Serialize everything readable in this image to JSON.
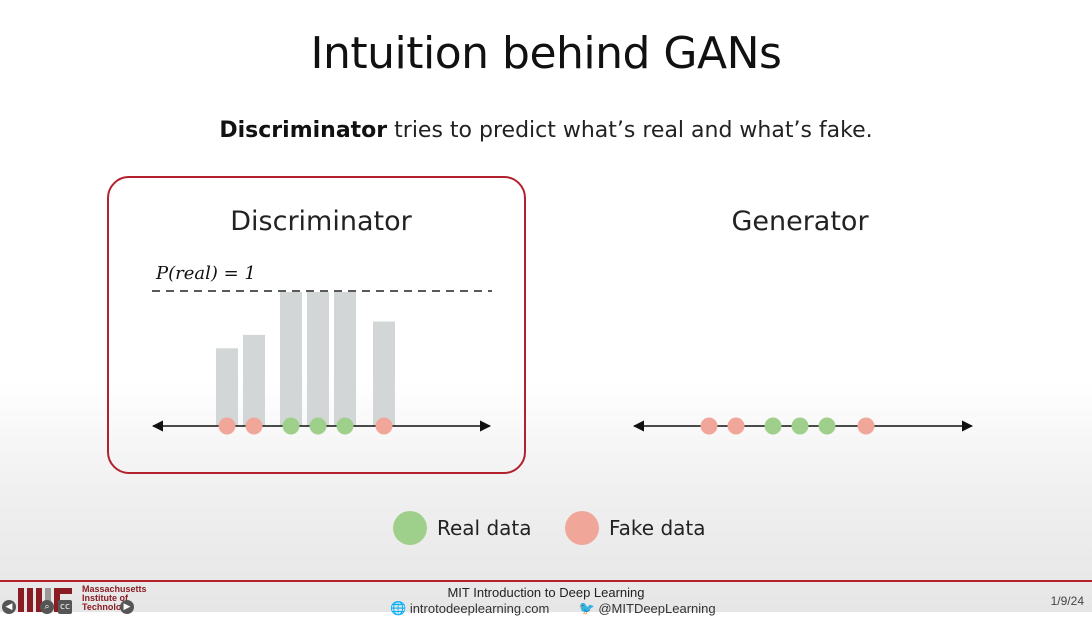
{
  "slide": {
    "title": "Intuition behind GANs",
    "subtitle_bold": "Discriminator",
    "subtitle_rest": " tries to predict what’s real and what’s fake."
  },
  "discriminator_panel": {
    "label": "Discriminator",
    "threshold_label": "P(real) = 1",
    "accent_color": "#b3202e"
  },
  "generator_panel": {
    "label": "Generator"
  },
  "chart_data": {
    "type": "bar",
    "title": "",
    "xlabel": "",
    "ylabel": "",
    "ylim": [
      0,
      1
    ],
    "threshold": 1,
    "points": [
      {
        "kind": "fake",
        "p_real": 0.58
      },
      {
        "kind": "fake",
        "p_real": 0.68
      },
      {
        "kind": "real",
        "p_real": 1.0
      },
      {
        "kind": "real",
        "p_real": 1.0
      },
      {
        "kind": "real",
        "p_real": 1.0
      },
      {
        "kind": "fake",
        "p_real": 0.78
      }
    ],
    "generator_points": [
      "fake",
      "fake",
      "real",
      "real",
      "real",
      "fake"
    ],
    "colors": {
      "real": "#9fd08b",
      "fake": "#f0a79a",
      "bar": "#d3d6d6"
    }
  },
  "legend": {
    "real_label": "Real data",
    "fake_label": "Fake data",
    "real_color": "#9fd08b",
    "fake_color": "#f0a79a"
  },
  "footer": {
    "institution": "Massachusetts Institute of Technology",
    "course": "MIT Introduction to Deep Learning",
    "website": "introtodeeplearning.com",
    "twitter": "@MITDeepLearning",
    "date": "1/9/24",
    "accent_color": "#b3202e"
  }
}
